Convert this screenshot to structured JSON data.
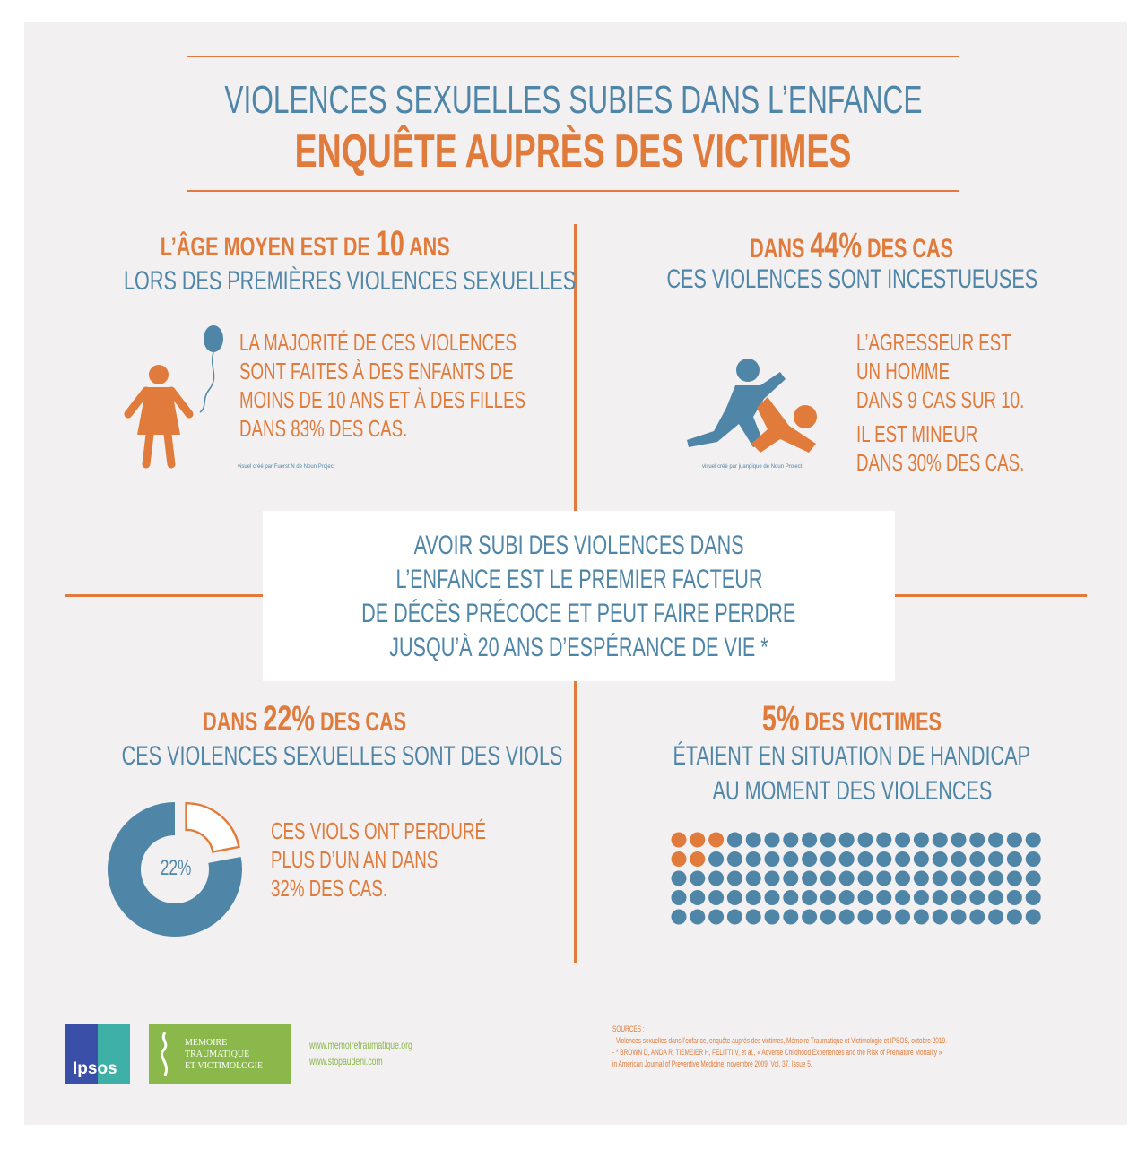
{
  "header": {
    "title_line1": "VIOLENCES SEXUELLES SUBIES DANS L’ENFANCE",
    "title_line2": "ENQUÊTE AUPRÈS DES VICTIMES"
  },
  "q1": {
    "pre": "L’ÂGE MOYEN EST DE ",
    "num": "10",
    "post": " ANS",
    "line2": "LORS DES PREMIÈRES VIOLENCES SEXUELLES",
    "body": [
      "LA MAJORITÉ DE CES VIOLENCES",
      "SONT FAITES À DES ENFANTS DE",
      "MOINS DE 10 ANS ET À DES FILLES",
      "DANS 83% DES CAS."
    ],
    "credit": "visuel créé par Fuerst N de Noun Project",
    "icon": "child-with-balloon-icon"
  },
  "q2": {
    "pre": "DANS ",
    "num": "44%",
    "post": " DES CAS",
    "line2": "CES VIOLENCES SONT INCESTUEUSES",
    "body": [
      "L’AGRESSEUR EST",
      "UN HOMME",
      "DANS 9 CAS SUR 10.",
      "IL EST MINEUR",
      "DANS 30% DES CAS."
    ],
    "credit": "visuel créé par juanpique de Noun Project",
    "icon": "aggression-icon"
  },
  "center": {
    "lines": [
      "AVOIR SUBI DES VIOLENCES DANS",
      "L’ENFANCE EST LE PREMIER FACTEUR",
      "DE DÉCÈS PRÉCOCE ET PEUT FAIRE PERDRE",
      "JUSQU’À 20 ANS D’ESPÉRANCE DE VIE *"
    ]
  },
  "q3": {
    "pre": "DANS ",
    "num": "22%",
    "post": " DES CAS",
    "line2": "CES VIOLENCES SEXUELLES SONT DES VIOLS",
    "body": [
      "CES VIOLS ONT PERDURÉ",
      "PLUS D’UN AN DANS",
      "32% DES CAS."
    ],
    "donut_label": "22%",
    "donut_percent": 22
  },
  "q4": {
    "num": "5%",
    "post": " DES VICTIMES",
    "line2": "ÉTAIENT EN SITUATION DE HANDICAP",
    "line3": "AU MOMENT DES VIOLENCES",
    "dots_total": 100,
    "dots_highlighted": 5
  },
  "footer": {
    "ipsos": "Ipsos",
    "mtv": [
      "MEMOIRE",
      "TRAUMATIQUE",
      "ET VICTIMOLOGIE"
    ],
    "urls": [
      "www.memoiretraumatique.org",
      "www.stopaudeni.com"
    ],
    "sources_title": "SOURCES :",
    "sources": [
      "- Violences sexuelles dans l’enfance, enquête auprès des victimes, Mémoire Traumatique et Victimologie et IPSOS, octobre 2019.",
      "- * BROWN D, ANDA R, TIEMEIER H, FELITTI V, et al., « Adverse Childhood Experiences and the Risk of Premature Mortality »",
      "in American Journal of Preventive Medicine, novembre 2009, Vol. 37, Issue 5."
    ]
  },
  "colors": {
    "orange": "#e07b3c",
    "blue": "#4f86a8",
    "background": "#f2f0f0",
    "green": "#8ab84a"
  }
}
